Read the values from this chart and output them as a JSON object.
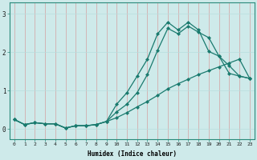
{
  "xlabel": "Humidex (Indice chaleur)",
  "bg_color": "#ceeaea",
  "line_color": "#1a7a6e",
  "grid_color": "#b8dede",
  "xlim": [
    -0.5,
    23.5
  ],
  "ylim": [
    -0.25,
    3.3
  ],
  "xticks": [
    0,
    1,
    2,
    3,
    4,
    5,
    6,
    7,
    8,
    9,
    10,
    11,
    12,
    13,
    14,
    15,
    16,
    17,
    18,
    19,
    20,
    21,
    22,
    23
  ],
  "yticks": [
    0,
    1,
    2,
    3
  ],
  "line1_x": [
    0,
    1,
    2,
    3,
    4,
    5,
    6,
    7,
    8,
    9,
    10,
    11,
    12,
    13,
    14,
    15,
    16,
    17,
    18,
    19,
    20,
    21,
    22,
    23
  ],
  "line1_y": [
    0.25,
    0.12,
    0.17,
    0.14,
    0.14,
    0.03,
    0.09,
    0.09,
    0.12,
    0.2,
    0.3,
    0.43,
    0.58,
    0.72,
    0.88,
    1.05,
    1.18,
    1.3,
    1.42,
    1.52,
    1.62,
    1.72,
    1.82,
    1.32
  ],
  "line2_x": [
    0,
    1,
    2,
    3,
    4,
    5,
    6,
    7,
    8,
    9,
    10,
    11,
    12,
    13,
    14,
    15,
    16,
    17,
    18,
    19,
    20,
    21,
    22,
    23
  ],
  "line2_y": [
    0.25,
    0.12,
    0.17,
    0.14,
    0.14,
    0.03,
    0.09,
    0.09,
    0.12,
    0.2,
    0.45,
    0.65,
    0.95,
    1.42,
    2.05,
    2.62,
    2.48,
    2.68,
    2.52,
    2.38,
    1.9,
    1.65,
    1.38,
    1.32
  ],
  "line3_x": [
    0,
    1,
    2,
    3,
    4,
    5,
    6,
    7,
    8,
    9,
    10,
    11,
    12,
    13,
    14,
    15,
    16,
    17,
    18,
    19,
    20,
    21,
    22,
    23
  ],
  "line3_y": [
    0.25,
    0.12,
    0.17,
    0.14,
    0.14,
    0.03,
    0.09,
    0.09,
    0.12,
    0.2,
    0.65,
    0.95,
    1.38,
    1.82,
    2.48,
    2.78,
    2.58,
    2.78,
    2.58,
    2.02,
    1.9,
    1.45,
    1.38,
    1.32
  ],
  "marker": "D",
  "markersize": 2.0,
  "linewidth": 0.9
}
